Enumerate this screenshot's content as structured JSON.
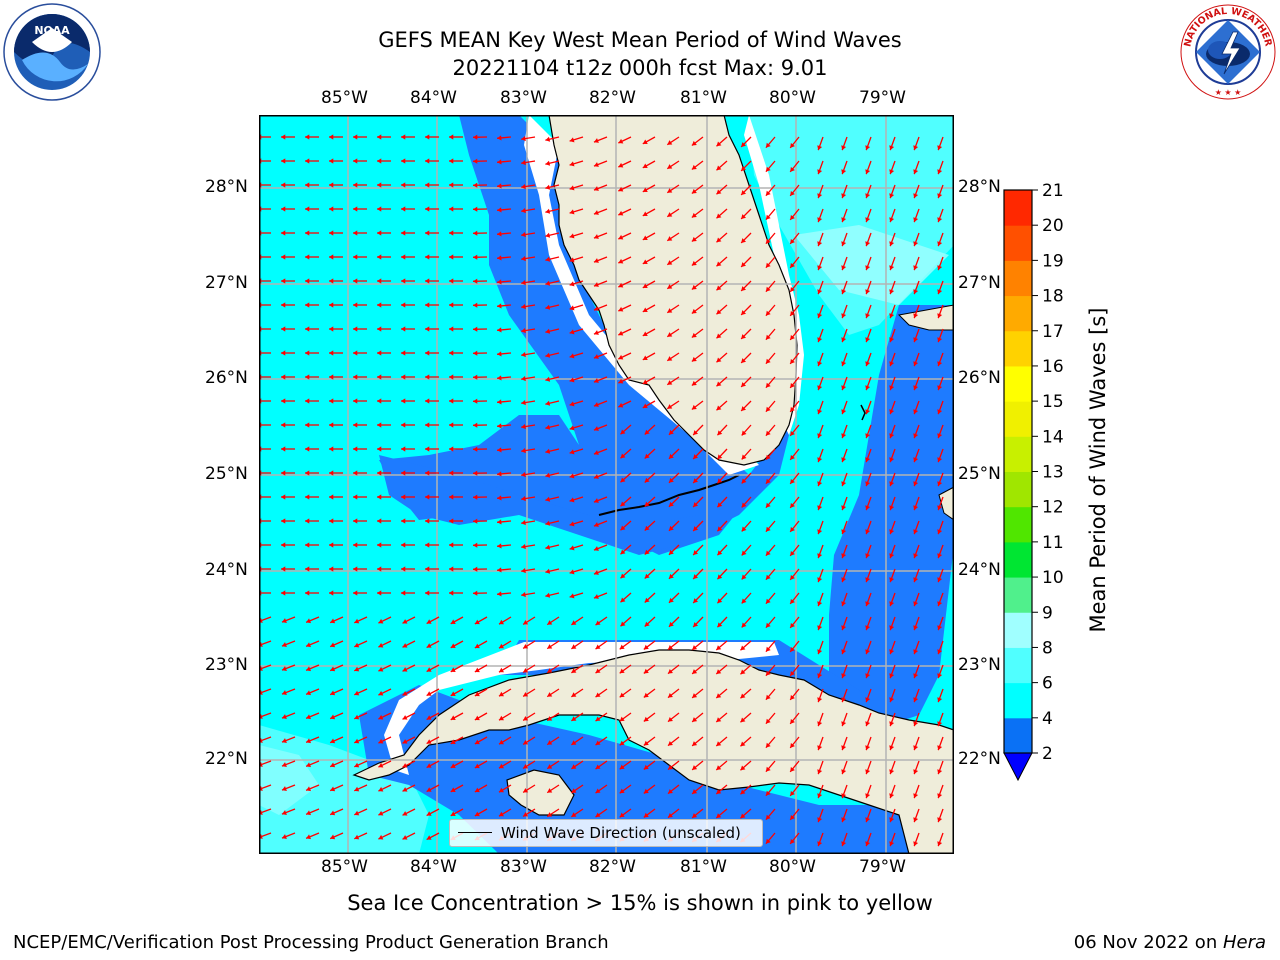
{
  "title": {
    "line1": "GEFS MEAN Key West Mean Period of Wind Waves",
    "line2": "20221104 t12z 000h fcst   Max: 9.01"
  },
  "map": {
    "lon_labels": [
      "85°W",
      "84°W",
      "83°W",
      "82°W",
      "81°W",
      "80°W",
      "79°W"
    ],
    "lat_labels": [
      "28°N",
      "27°N",
      "26°N",
      "25°N",
      "24°N",
      "23°N",
      "22°N"
    ],
    "colors": {
      "land": "#efedda",
      "band_2_4": "#1e7bff",
      "band_4_6": "#00ffff",
      "band_6_8": "#50ffff",
      "band_8_9": "#a0ffff",
      "arrow": "#ff0000",
      "grid": "#b4b4b4"
    },
    "legend_label": "Wind Wave Direction (unscaled)"
  },
  "colorbar": {
    "label": "Mean Period of Wind Waves [s]",
    "ticks": [
      "2",
      "4",
      "6",
      "8",
      "9",
      "10",
      "11",
      "12",
      "13",
      "14",
      "15",
      "16",
      "17",
      "18",
      "19",
      "20",
      "21"
    ],
    "colors": [
      "#0a71f5",
      "#00ffff",
      "#50ffff",
      "#a0ffff",
      "#50f08c",
      "#00e632",
      "#50e600",
      "#a0e600",
      "#c8f000",
      "#f0f000",
      "#ffff00",
      "#ffd200",
      "#ffaa00",
      "#ff8200",
      "#ff5000",
      "#ff2800",
      "#ff0000"
    ],
    "under_color": "#0000ff"
  },
  "subtitle": "Sea Ice Concentration > 15% is shown in pink to yellow",
  "footer": {
    "left": "NCEP/EMC/Verification Post Processing Product Generation Branch",
    "date": "06 Nov 2022 on ",
    "host": "Hera"
  },
  "logos": {
    "left": "noaa-logo",
    "right": "nws-logo"
  }
}
